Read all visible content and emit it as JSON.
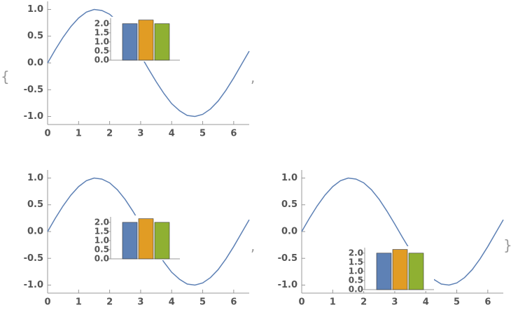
{
  "chart_data": [
    {
      "type": "line",
      "color": "#5e81b5",
      "x": [
        0,
        0.25,
        0.5,
        0.75,
        1,
        1.25,
        1.5,
        1.75,
        2,
        2.25,
        2.5,
        2.75,
        3,
        3.25,
        3.5,
        3.75,
        4,
        4.25,
        4.5,
        4.75,
        5,
        5.25,
        5.5,
        5.75,
        6,
        6.25,
        6.5
      ],
      "values": [
        0,
        0.25,
        0.48,
        0.68,
        0.84,
        0.95,
        1.0,
        0.98,
        0.91,
        0.78,
        0.6,
        0.38,
        0.14,
        -0.11,
        -0.35,
        -0.57,
        -0.76,
        -0.89,
        -0.98,
        -1.0,
        -0.96,
        -0.86,
        -0.71,
        -0.51,
        -0.28,
        -0.03,
        0.22
      ],
      "xlim": [
        0,
        6.5
      ],
      "ylim": [
        -1.15,
        1.15
      ],
      "xticks": [
        0,
        1,
        2,
        3,
        4,
        5,
        6
      ],
      "yticks": [
        {
          "value": -1,
          "label": "-1.0"
        },
        -0.5,
        {
          "value": 0,
          "label": "0.0"
        },
        0.5,
        {
          "value": 1,
          "label": "1.0"
        }
      ],
      "inset": {
        "type": "bar",
        "values": [
          2.0,
          2.2,
          2.0
        ],
        "colors": [
          "#5e81b5",
          "#e19c24",
          "#8fb032"
        ],
        "ylim": [
          0,
          2.3
        ],
        "yticks": [
          {
            "value": 0,
            "label": "0.0"
          },
          0.5,
          {
            "value": 1,
            "label": "1.0"
          },
          1.5,
          {
            "value": 2,
            "label": "2.0"
          }
        ]
      }
    },
    {
      "type": "line",
      "color": "#5e81b5",
      "x": [
        0,
        0.25,
        0.5,
        0.75,
        1,
        1.25,
        1.5,
        1.75,
        2,
        2.25,
        2.5,
        2.75,
        3,
        3.25,
        3.5,
        3.75,
        4,
        4.25,
        4.5,
        4.75,
        5,
        5.25,
        5.5,
        5.75,
        6,
        6.25,
        6.5
      ],
      "values": [
        0,
        0.25,
        0.48,
        0.68,
        0.84,
        0.95,
        1.0,
        0.98,
        0.91,
        0.78,
        0.6,
        0.38,
        0.14,
        -0.11,
        -0.35,
        -0.57,
        -0.76,
        -0.89,
        -0.98,
        -1.0,
        -0.96,
        -0.86,
        -0.71,
        -0.51,
        -0.28,
        -0.03,
        0.22
      ],
      "xlim": [
        0,
        6.5
      ],
      "ylim": [
        -1.15,
        1.15
      ],
      "xticks": [
        0,
        1,
        2,
        3,
        4,
        5,
        6
      ],
      "yticks": [
        {
          "value": -1,
          "label": "-1.0"
        },
        -0.5,
        {
          "value": 0,
          "label": "0.0"
        },
        0.5,
        {
          "value": 1,
          "label": "1.0"
        }
      ],
      "inset": {
        "type": "bar",
        "values": [
          2.0,
          2.2,
          2.0
        ],
        "colors": [
          "#5e81b5",
          "#e19c24",
          "#8fb032"
        ],
        "ylim": [
          0,
          2.3
        ],
        "yticks": [
          {
            "value": 0,
            "label": "0.0"
          },
          0.5,
          {
            "value": 1,
            "label": "1.0"
          },
          1.5,
          {
            "value": 2,
            "label": "2.0"
          }
        ]
      }
    },
    {
      "type": "line",
      "color": "#5e81b5",
      "x": [
        0,
        0.25,
        0.5,
        0.75,
        1,
        1.25,
        1.5,
        1.75,
        2,
        2.25,
        2.5,
        2.75,
        3,
        3.25,
        3.5,
        3.75,
        4,
        4.25,
        4.5,
        4.75,
        5,
        5.25,
        5.5,
        5.75,
        6,
        6.25,
        6.5
      ],
      "values": [
        0,
        0.25,
        0.48,
        0.68,
        0.84,
        0.95,
        1.0,
        0.98,
        0.91,
        0.78,
        0.6,
        0.38,
        0.14,
        -0.11,
        -0.35,
        -0.57,
        -0.76,
        -0.89,
        -0.98,
        -1.0,
        -0.96,
        -0.86,
        -0.71,
        -0.51,
        -0.28,
        -0.03,
        0.22
      ],
      "xlim": [
        0,
        6.5
      ],
      "ylim": [
        -1.15,
        1.15
      ],
      "xticks": [
        0,
        1,
        2,
        3,
        4,
        5,
        6
      ],
      "yticks": [
        {
          "value": -1,
          "label": "-1.0"
        },
        -0.5,
        {
          "value": 0,
          "label": "0.0"
        },
        0.5,
        {
          "value": 1,
          "label": "1.0"
        }
      ],
      "inset": {
        "type": "bar",
        "values": [
          2.0,
          2.2,
          2.0
        ],
        "colors": [
          "#5e81b5",
          "#e19c24",
          "#8fb032"
        ],
        "ylim": [
          0,
          2.3
        ],
        "yticks": [
          {
            "value": 0,
            "label": "0.0"
          },
          0.5,
          {
            "value": 1,
            "label": "1.0"
          },
          1.5,
          {
            "value": 2,
            "label": "2.0"
          }
        ]
      }
    }
  ],
  "list_delimiters": [
    "{",
    ",",
    ",",
    "}"
  ]
}
